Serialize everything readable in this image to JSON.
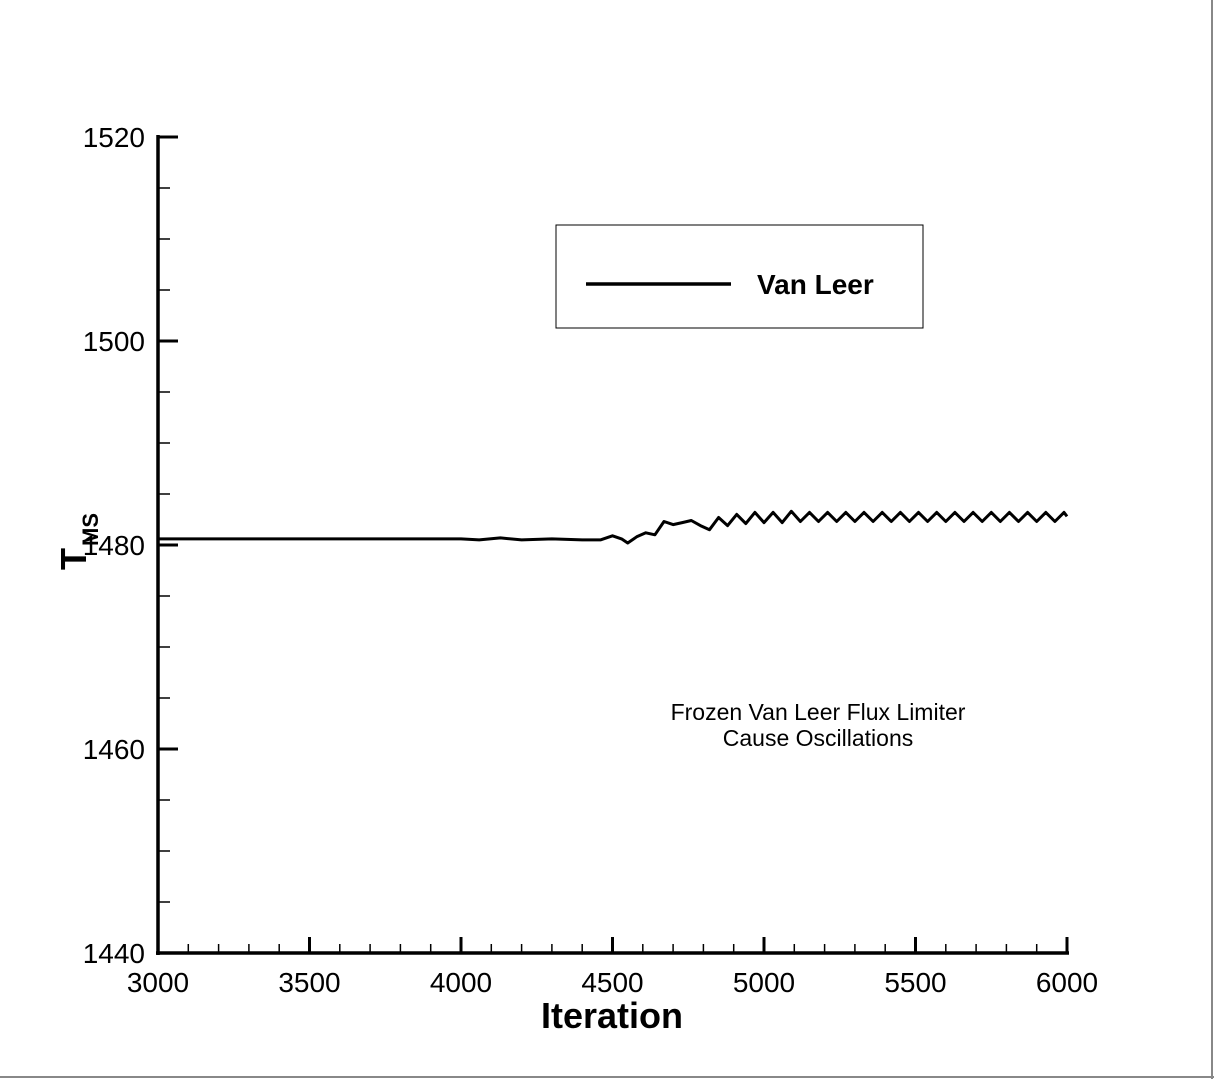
{
  "chart_data": {
    "type": "line",
    "xlabel": "Iteration",
    "ylabel": "T",
    "ylabel_subscript": "MS",
    "xlim": [
      3000,
      6000
    ],
    "ylim": [
      1440,
      1520
    ],
    "xticks": [
      3000,
      3500,
      4000,
      4500,
      5000,
      5500,
      6000
    ],
    "xtick_labels": [
      "3000",
      "3500",
      "4000",
      "4500",
      "5000",
      "5500",
      "6000"
    ],
    "yticks": [
      1440,
      1460,
      1480,
      1500,
      1520
    ],
    "ytick_labels": [
      "1440",
      "1460",
      "1480",
      "1500",
      "1520"
    ],
    "grid": false,
    "legend_position": "top-right",
    "series": [
      {
        "name": "Van Leer",
        "color": "#000000",
        "x": [
          3000,
          3500,
          4000,
          4060,
          4130,
          4200,
          4300,
          4400,
          4460,
          4500,
          4530,
          4550,
          4580,
          4610,
          4640,
          4670,
          4700,
          4730,
          4760,
          4790,
          4820,
          4850,
          4880,
          4910,
          4940,
          4970,
          5000,
          5030,
          5060,
          5090,
          5120,
          5150,
          5180,
          5210,
          5240,
          5270,
          5300,
          5330,
          5360,
          5390,
          5420,
          5450,
          5480,
          5510,
          5540,
          5570,
          5600,
          5630,
          5660,
          5690,
          5720,
          5750,
          5780,
          5810,
          5840,
          5870,
          5900,
          5930,
          5960,
          5990,
          6000
        ],
        "y": [
          1480.6,
          1480.6,
          1480.6,
          1480.5,
          1480.7,
          1480.5,
          1480.6,
          1480.5,
          1480.5,
          1480.9,
          1480.6,
          1480.2,
          1480.8,
          1481.2,
          1481.0,
          1482.3,
          1482.0,
          1482.2,
          1482.4,
          1481.9,
          1481.5,
          1482.7,
          1481.9,
          1483.0,
          1482.1,
          1483.2,
          1482.2,
          1483.2,
          1482.2,
          1483.3,
          1482.3,
          1483.2,
          1482.3,
          1483.2,
          1482.3,
          1483.2,
          1482.3,
          1483.2,
          1482.3,
          1483.2,
          1482.3,
          1483.2,
          1482.3,
          1483.2,
          1482.3,
          1483.2,
          1482.3,
          1483.2,
          1482.3,
          1483.2,
          1482.3,
          1483.2,
          1482.3,
          1483.2,
          1482.3,
          1483.2,
          1482.3,
          1483.2,
          1482.3,
          1483.2,
          1482.8
        ]
      }
    ],
    "annotations": [
      "Frozen Van Leer Flux Limiter",
      "Cause Oscillations"
    ]
  }
}
